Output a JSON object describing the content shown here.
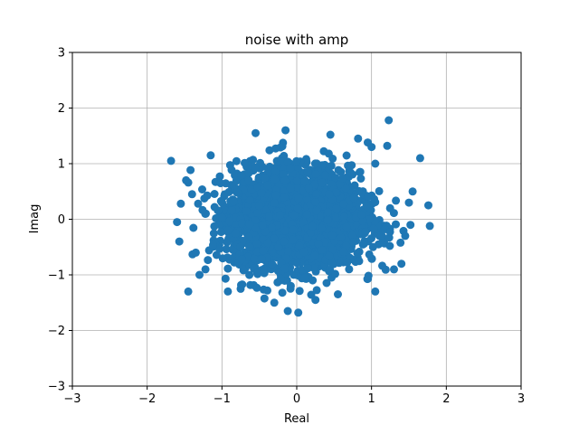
{
  "chart_data": {
    "type": "scatter",
    "title": "noise with amp",
    "xlabel": "Real",
    "ylabel": "Imag",
    "xlim": [
      -3,
      3
    ],
    "ylim": [
      -3,
      3
    ],
    "xticks": [
      -3,
      -2,
      -1,
      0,
      1,
      2,
      3
    ],
    "yticks": [
      -3,
      -2,
      -1,
      0,
      1,
      2,
      3
    ],
    "grid": true,
    "marker_color": "#1f77b4",
    "series": [
      {
        "distribution": "complex gaussian noise, approx. sigma 0.4 per axis, mean 0",
        "outlier_points": [
          [
            -1.68,
            1.05
          ],
          [
            1.23,
            1.78
          ],
          [
            1.65,
            1.1
          ],
          [
            1.21,
            1.32
          ],
          [
            -1.45,
            -1.3
          ],
          [
            0.02,
            -1.68
          ],
          [
            -0.12,
            -1.65
          ],
          [
            1.76,
            0.25
          ],
          [
            1.78,
            -0.12
          ],
          [
            -1.57,
            -0.4
          ],
          [
            -1.6,
            -0.05
          ],
          [
            -1.45,
            0.66
          ],
          [
            -1.48,
            0.7
          ],
          [
            1.05,
            -1.3
          ],
          [
            1.3,
            -0.9
          ],
          [
            1.4,
            -0.8
          ],
          [
            -1.15,
            1.15
          ],
          [
            -0.55,
            1.55
          ],
          [
            0.45,
            1.52
          ],
          [
            -0.15,
            1.6
          ],
          [
            0.82,
            1.45
          ],
          [
            0.95,
            1.38
          ],
          [
            1.0,
            1.3
          ],
          [
            1.05,
            1.0
          ],
          [
            -1.3,
            -1.0
          ],
          [
            -1.22,
            -0.9
          ],
          [
            -0.75,
            -1.25
          ],
          [
            -0.92,
            -1.3
          ],
          [
            -0.3,
            -1.5
          ],
          [
            0.25,
            -1.45
          ],
          [
            0.55,
            -1.35
          ],
          [
            1.55,
            0.5
          ],
          [
            1.5,
            0.3
          ],
          [
            1.45,
            -0.3
          ],
          [
            1.52,
            -0.1
          ],
          [
            -1.55,
            0.28
          ],
          [
            -1.4,
            0.45
          ],
          [
            -1.35,
            -0.6
          ]
        ]
      }
    ]
  }
}
